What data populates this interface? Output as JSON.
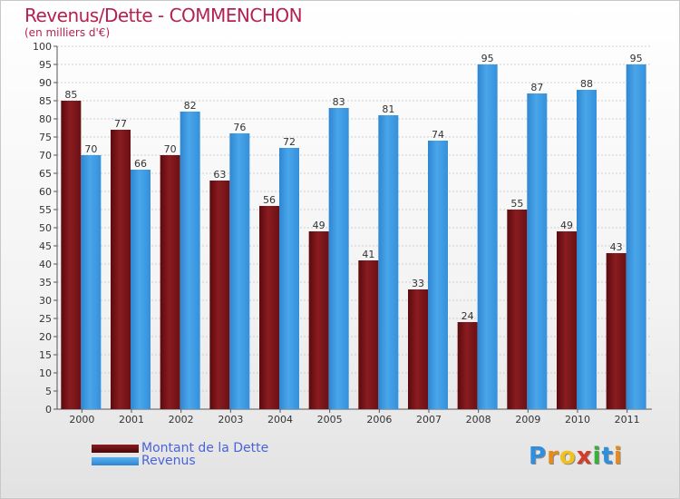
{
  "header": {
    "title": "Revenus/Dette - COMMENCHON",
    "subtitle": "(en milliers d'€)"
  },
  "chart_data": {
    "type": "bar",
    "categories": [
      "2000",
      "2001",
      "2002",
      "2003",
      "2004",
      "2005",
      "2006",
      "2007",
      "2008",
      "2009",
      "2010",
      "2011"
    ],
    "series": [
      {
        "name": "Montant de la Dette",
        "values": [
          85,
          77,
          70,
          63,
          56,
          49,
          41,
          33,
          24,
          55,
          49,
          43
        ],
        "color": "#7a1216"
      },
      {
        "name": "Revenus",
        "values": [
          70,
          66,
          82,
          76,
          72,
          83,
          81,
          74,
          95,
          87,
          88,
          95
        ],
        "color": "#3a96e0"
      }
    ],
    "ylim": [
      0,
      100
    ],
    "yticks": [
      0,
      5,
      10,
      15,
      20,
      25,
      30,
      35,
      40,
      45,
      50,
      55,
      60,
      65,
      70,
      75,
      80,
      85,
      90,
      95,
      100
    ],
    "grid": true,
    "legend_position": "bottom-left",
    "data_labels": true
  },
  "logo": {
    "letters": [
      {
        "char": "P",
        "color": "#2f8fdc"
      },
      {
        "char": "r",
        "color": "#e88a1a"
      },
      {
        "char": "o",
        "color": "#f2c21a"
      },
      {
        "char": "x",
        "color": "#d63b2a"
      },
      {
        "char": "i",
        "color": "#3ab03a"
      },
      {
        "char": "t",
        "color": "#2f8fdc"
      },
      {
        "char": "i",
        "color": "#e88a1a"
      }
    ]
  }
}
